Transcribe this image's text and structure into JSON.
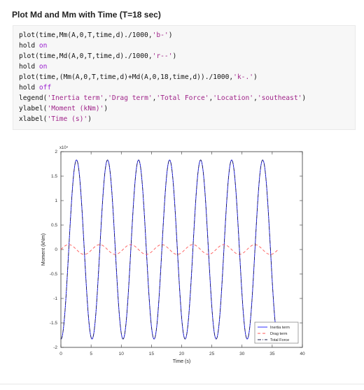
{
  "heading": "Plot Md and Mm with Time (T=18 sec)",
  "code": {
    "lines": [
      [
        {
          "t": "plot(time,Mm(A,0,T,time,d)./1000,",
          "c": "p"
        },
        {
          "t": "'b-'",
          "c": "s"
        },
        {
          "t": ")",
          "c": "p"
        }
      ],
      [
        {
          "t": "hold ",
          "c": "p"
        },
        {
          "t": "on",
          "c": "k"
        }
      ],
      [
        {
          "t": "plot(time,Md(A,0,T,time,d)./1000,",
          "c": "p"
        },
        {
          "t": "'r--'",
          "c": "s"
        },
        {
          "t": ")",
          "c": "p"
        }
      ],
      [
        {
          "t": "hold ",
          "c": "p"
        },
        {
          "t": "on",
          "c": "k"
        }
      ],
      [
        {
          "t": "plot(time,(Mm(A,0,T,time,d)+Md(A,0,18,time,d))./1000,",
          "c": "p"
        },
        {
          "t": "'k-.'",
          "c": "s"
        },
        {
          "t": ")",
          "c": "p"
        }
      ],
      [
        {
          "t": "hold ",
          "c": "p"
        },
        {
          "t": "off",
          "c": "k"
        }
      ],
      [
        {
          "t": "legend(",
          "c": "p"
        },
        {
          "t": "'Inertia term'",
          "c": "s"
        },
        {
          "t": ",",
          "c": "p"
        },
        {
          "t": "'Drag term'",
          "c": "s"
        },
        {
          "t": ",",
          "c": "p"
        },
        {
          "t": "'Total Force'",
          "c": "s"
        },
        {
          "t": ",",
          "c": "p"
        },
        {
          "t": "'Location'",
          "c": "s"
        },
        {
          "t": ",",
          "c": "p"
        },
        {
          "t": "'southeast'",
          "c": "s"
        },
        {
          "t": ")",
          "c": "p"
        }
      ],
      [
        {
          "t": "ylabel(",
          "c": "p"
        },
        {
          "t": "'Moment (kNm)'",
          "c": "s"
        },
        {
          "t": ")",
          "c": "p"
        }
      ],
      [
        {
          "t": "xlabel(",
          "c": "p"
        },
        {
          "t": "'Time (s)'",
          "c": "s"
        },
        {
          "t": ")",
          "c": "p"
        }
      ]
    ]
  },
  "colors": {
    "keyword": "#9b1fd0",
    "string": "#a0258a",
    "inertia": "#1a1aff",
    "drag": "#ff5555",
    "total": "#1a1a4a"
  },
  "chart_data": {
    "type": "line",
    "xlabel": "Time (s)",
    "ylabel": "Moment (kNm)",
    "xlim": [
      0,
      40
    ],
    "ylim": [
      -20000,
      20000
    ],
    "y_exponent_label": "x10⁴",
    "xticks": [
      "0",
      "5",
      "10",
      "15",
      "20",
      "25",
      "30",
      "35",
      "40"
    ],
    "yticks": [
      "-2",
      "-1.5",
      "-1",
      "-0.5",
      "0",
      "0.5",
      "1",
      "1.5",
      "2"
    ],
    "legend_position": "southeast",
    "series": [
      {
        "name": "Inertia term",
        "style": "solid",
        "amplitude": 18300,
        "period": 5.14,
        "phase_zero_at": 1.3,
        "x_range": [
          0,
          36
        ]
      },
      {
        "name": "Drag term",
        "style": "dashed",
        "amplitude": 1000,
        "period": 5.14,
        "phase_zero_at": 0,
        "x_range": [
          0,
          36
        ]
      },
      {
        "name": "Total Force",
        "style": "dash-dot",
        "amplitude": 18300,
        "period": 5.14,
        "phase_zero_at": 1.3,
        "x_range": [
          0,
          36
        ]
      }
    ]
  }
}
